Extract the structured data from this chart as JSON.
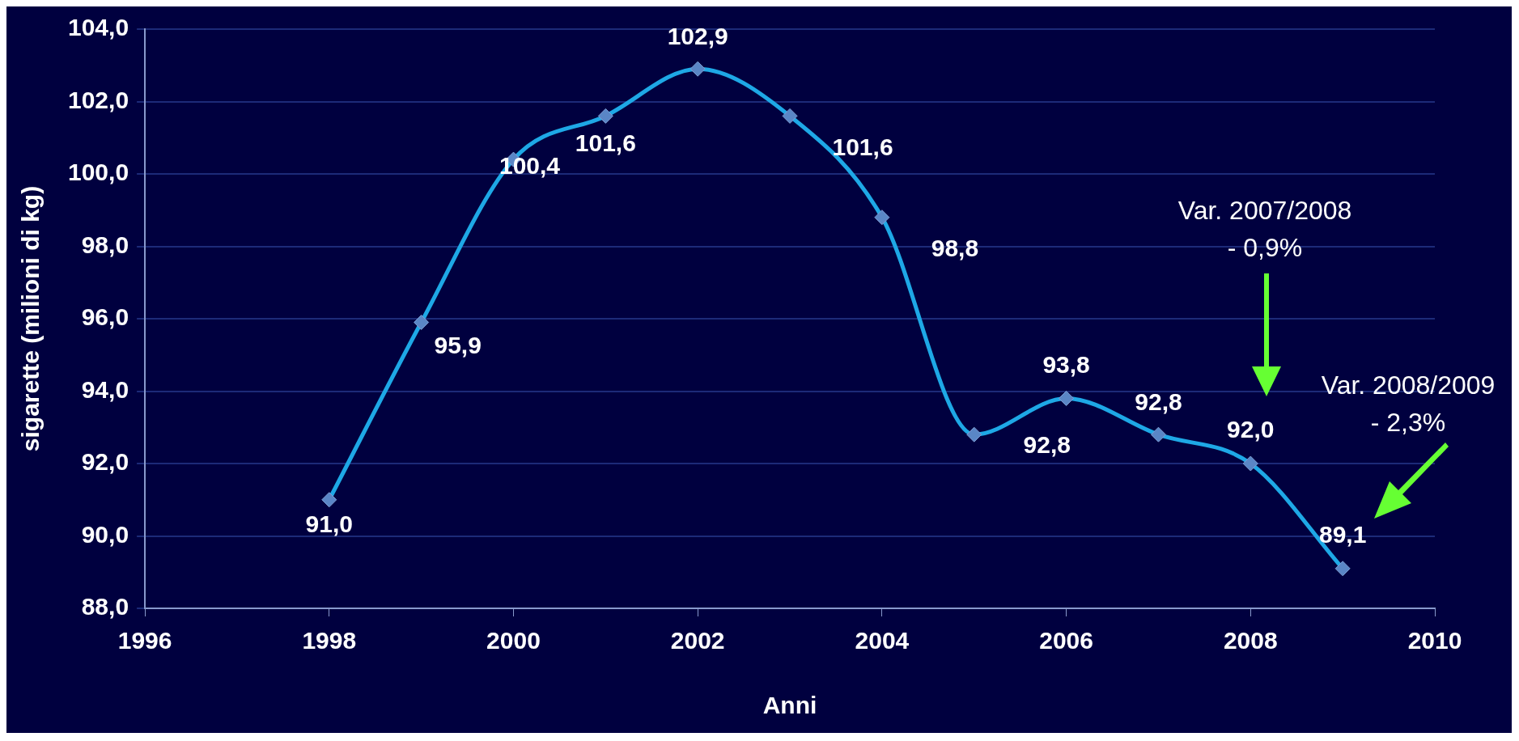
{
  "chart_data": {
    "type": "line",
    "xlabel": "Anni",
    "ylabel": "sigarette (milioni di kg)",
    "x": [
      1998,
      1999,
      2000,
      2001,
      2002,
      2003,
      2004,
      2005,
      2006,
      2007,
      2008,
      2009
    ],
    "series": [
      {
        "color": "#1ea8e6",
        "values": [
          91.0,
          95.9,
          100.4,
          101.6,
          102.9,
          101.6,
          98.8,
          92.8,
          93.8,
          92.8,
          92.0,
          89.1
        ],
        "value_labels": [
          "91,0",
          "95,9",
          "100,4",
          "101,6",
          "102,9",
          "101,6",
          "98,8",
          "92,8",
          "93,8",
          "92,8",
          "92,0",
          "89,1"
        ]
      }
    ],
    "xlim": [
      1996,
      2010
    ],
    "xticks": [
      1996,
      1998,
      2000,
      2002,
      2004,
      2006,
      2008,
      2010
    ],
    "ylim": [
      88,
      104
    ],
    "yticks": [
      {
        "value": 88,
        "label": "88,0"
      },
      {
        "value": 90,
        "label": "90,0"
      },
      {
        "value": 92,
        "label": "92,0"
      },
      {
        "value": 94,
        "label": "94,0"
      },
      {
        "value": 96,
        "label": "96,0"
      },
      {
        "value": 98,
        "label": "98,0"
      },
      {
        "value": 100,
        "label": "100,0"
      },
      {
        "value": 102,
        "label": "102,0"
      },
      {
        "value": 104,
        "label": "104,0"
      }
    ],
    "grid": "y",
    "marker": "diamond",
    "line_style": "solid",
    "legend": false,
    "annotations": [
      "Var. 2007/2008\n- 0,9%",
      "Var. 2008/2009\n- 2,3%"
    ]
  }
}
